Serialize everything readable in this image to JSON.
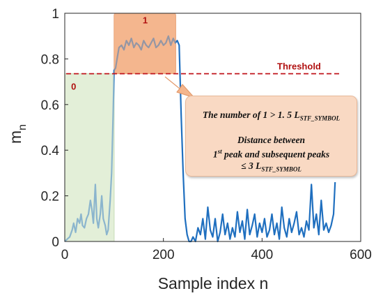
{
  "chart_data": {
    "type": "line",
    "xlabel": "Sample index n",
    "ylabel_main": "m",
    "ylabel_sub": "n",
    "xlim": [
      0,
      600
    ],
    "ylim": [
      0,
      1
    ],
    "xticks": [
      "0",
      "200",
      "400",
      "600"
    ],
    "yticks": [
      "0",
      "0.2",
      "0.4",
      "0.6",
      "0.8",
      "1"
    ],
    "grid": false,
    "threshold": {
      "value": 0.735,
      "label": "Threshold",
      "color": "#c0141c"
    },
    "regions": [
      {
        "label": "0",
        "x": [
          0,
          100
        ],
        "y": [
          0,
          0.735
        ],
        "color": "#e3efd8"
      },
      {
        "label": "1",
        "x": [
          100,
          225
        ],
        "y": [
          0.735,
          1.0
        ],
        "color": "#f4b68e"
      }
    ],
    "series": [
      {
        "color": "#1f6fbf",
        "x": [
          0,
          5,
          10,
          15,
          18,
          22,
          26,
          30,
          33,
          36,
          40,
          44,
          48,
          52,
          55,
          58,
          62,
          65,
          68,
          72,
          75,
          78,
          82,
          85,
          88,
          92,
          95,
          98,
          100,
          103,
          106,
          110,
          115,
          120,
          125,
          130,
          135,
          140,
          145,
          150,
          155,
          160,
          165,
          170,
          175,
          180,
          185,
          190,
          195,
          200,
          205,
          210,
          215,
          220,
          224,
          228,
          232,
          236,
          240,
          244,
          248,
          252,
          256,
          260,
          265,
          270,
          275,
          280,
          285,
          290,
          295,
          300,
          305,
          310,
          315,
          320,
          325,
          330,
          335,
          340,
          345,
          350,
          355,
          360,
          365,
          370,
          375,
          380,
          385,
          390,
          395,
          400,
          405,
          410,
          415,
          420,
          425,
          430,
          435,
          440,
          445,
          450,
          455,
          460,
          465,
          470,
          475,
          480,
          485,
          490,
          495,
          500,
          505,
          510,
          515,
          520,
          525,
          530,
          535,
          540,
          545,
          548
        ],
        "y": [
          0.0,
          0.01,
          0.02,
          0.05,
          0.08,
          0.04,
          0.1,
          0.08,
          0.12,
          0.07,
          0.06,
          0.1,
          0.12,
          0.18,
          0.14,
          0.08,
          0.25,
          0.1,
          0.06,
          0.12,
          0.2,
          0.1,
          0.07,
          0.03,
          0.05,
          0.18,
          0.3,
          0.55,
          0.75,
          0.76,
          0.8,
          0.85,
          0.86,
          0.84,
          0.88,
          0.86,
          0.89,
          0.85,
          0.87,
          0.86,
          0.84,
          0.88,
          0.86,
          0.85,
          0.87,
          0.89,
          0.85,
          0.86,
          0.88,
          0.86,
          0.87,
          0.9,
          0.86,
          0.89,
          0.87,
          0.88,
          0.86,
          0.55,
          0.3,
          0.1,
          0.03,
          0.0,
          0.0,
          0.02,
          0.0,
          0.06,
          0.03,
          0.1,
          0.01,
          0.15,
          0.05,
          0.02,
          0.1,
          0.0,
          0.04,
          0.12,
          0.03,
          0.08,
          0.01,
          0.06,
          0.02,
          0.13,
          0.04,
          0.09,
          0.01,
          0.14,
          0.03,
          0.07,
          0.12,
          0.02,
          0.08,
          0.04,
          0.1,
          0.02,
          0.05,
          0.12,
          0.03,
          0.08,
          0.01,
          0.15,
          0.06,
          0.02,
          0.1,
          0.04,
          0.08,
          0.13,
          0.03,
          0.06,
          0.02,
          0.09,
          0.05,
          0.25,
          0.06,
          0.12,
          0.03,
          0.18,
          0.05,
          0.08,
          0.04,
          0.07,
          0.12,
          0.26
        ]
      }
    ]
  },
  "callout": {
    "line1_prefix": "The number of 1 > 1. 5 L",
    "line1_sub": "STF_SYMBOL",
    "line2": "Distance between",
    "line3_prefix": "1",
    "line3_sup": "st",
    "line3_rest": " peak and subsequent peaks",
    "line4_prefix": "≤ 3 L",
    "line4_sub": "STF_SYMBOL"
  }
}
